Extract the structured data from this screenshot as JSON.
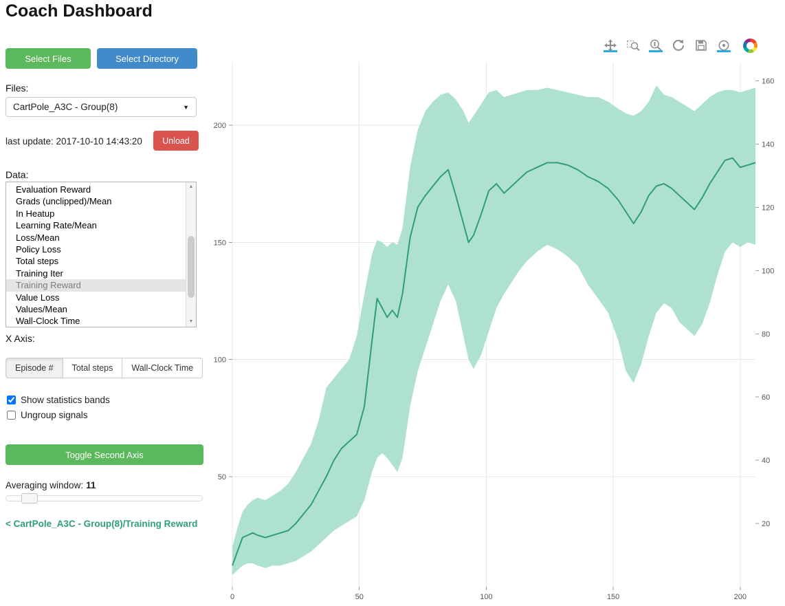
{
  "header": {
    "title": "Coach Dashboard"
  },
  "colors": {
    "green_button": "#5cb85c",
    "blue_button": "#428bca",
    "red_button": "#d9534f",
    "link_green": "#2f9e77",
    "active_tool_underline": "#26aae1"
  },
  "sidebar": {
    "select_files": "Select Files",
    "select_directory": "Select Directory",
    "files_label": "Files:",
    "files_selected": "CartPole_A3C - Group(8)",
    "last_update": "last update: 2017-10-10 14:43:20",
    "unload": "Unload",
    "data_label": "Data:",
    "data_items": [
      "Evaluation Reward",
      "Grads (unclipped)/Mean",
      "In Heatup",
      "Learning Rate/Mean",
      "Loss/Mean",
      "Policy Loss",
      "Total steps",
      "Training Iter",
      "Training Reward",
      "Value Loss",
      "Values/Mean",
      "Wall-Clock Time"
    ],
    "data_selected": "Training Reward",
    "xaxis_label": "X Axis:",
    "xaxis_options": [
      "Episode #",
      "Total steps",
      "Wall-Clock Time"
    ],
    "xaxis_active": "Episode #",
    "show_bands_label": "Show statistics bands",
    "show_bands_checked": true,
    "ungroup_label": "Ungroup signals",
    "ungroup_checked": false,
    "toggle_second_axis": "Toggle Second Axis",
    "averaging_label": "Averaging window:",
    "averaging_value": "11",
    "breadcrumb": "< CartPole_A3C - Group(8)/Training Reward"
  },
  "toolbar": {
    "tools": [
      {
        "name": "pan",
        "active": true
      },
      {
        "name": "box-zoom",
        "active": false
      },
      {
        "name": "wheel-zoom",
        "active": true
      },
      {
        "name": "reset",
        "active": false
      },
      {
        "name": "save",
        "active": false
      },
      {
        "name": "hover",
        "active": true
      }
    ],
    "logo": "bokeh"
  },
  "chart_data": {
    "type": "line",
    "title": "",
    "xlabel": "",
    "ylabel": "",
    "grid": true,
    "legend": null,
    "xlim": [
      0,
      206
    ],
    "ylim": [
      3,
      227
    ],
    "right_ylim": [
      0,
      166
    ],
    "x_ticks": [
      0,
      50,
      100,
      150,
      200
    ],
    "y_ticks_left": [
      50,
      100,
      150,
      200
    ],
    "y_ticks_right": [
      20,
      40,
      60,
      80,
      100,
      120,
      140,
      160
    ],
    "line_color": "#2f9e77",
    "band_color": "#abdfd0",
    "x": [
      0,
      2,
      4,
      6,
      8,
      10,
      13,
      16,
      19,
      22,
      25,
      28,
      31,
      34,
      37,
      40,
      43,
      46,
      49,
      52,
      55,
      57,
      59,
      61,
      63,
      65,
      67,
      70,
      73,
      76,
      79,
      82,
      85,
      88,
      91,
      93,
      95,
      98,
      101,
      104,
      107,
      110,
      113,
      116,
      120,
      124,
      128,
      132,
      136,
      140,
      144,
      148,
      152,
      155,
      158,
      161,
      164,
      167,
      170,
      173,
      176,
      179,
      182,
      185,
      188,
      191,
      194,
      197,
      200,
      203,
      206
    ],
    "series": [
      {
        "name": "Training Reward (mean)",
        "values": [
          12,
          18,
          24,
          25,
          26,
          25,
          24,
          25,
          26,
          27,
          30,
          34,
          38,
          44,
          50,
          57,
          62,
          65,
          68,
          80,
          108,
          126,
          122,
          118,
          121,
          118,
          128,
          152,
          165,
          170,
          174,
          178,
          181,
          170,
          158,
          150,
          153,
          162,
          172,
          175,
          171,
          174,
          177,
          180,
          182,
          184,
          184,
          183,
          181,
          178,
          176,
          173,
          168,
          163,
          158,
          163,
          170,
          174,
          175,
          173,
          170,
          167,
          164,
          169,
          175,
          180,
          185,
          186,
          182,
          183,
          184
        ]
      }
    ],
    "band": {
      "name": "statistics band",
      "lower": [
        8,
        10,
        12,
        13,
        13,
        12,
        11,
        12,
        12,
        13,
        14,
        16,
        18,
        21,
        24,
        27,
        29,
        31,
        33,
        40,
        52,
        58,
        60,
        58,
        55,
        52,
        58,
        80,
        95,
        105,
        115,
        125,
        132,
        125,
        110,
        100,
        96,
        102,
        112,
        122,
        128,
        133,
        138,
        142,
        146,
        149,
        147,
        144,
        140,
        132,
        126,
        120,
        108,
        95,
        90,
        98,
        110,
        120,
        124,
        122,
        116,
        113,
        110,
        115,
        124,
        136,
        146,
        150,
        148,
        150,
        149
      ],
      "upper": [
        20,
        28,
        35,
        38,
        40,
        41,
        40,
        42,
        44,
        47,
        52,
        58,
        64,
        74,
        88,
        92,
        96,
        100,
        110,
        128,
        145,
        151,
        150,
        148,
        150,
        149,
        156,
        182,
        198,
        206,
        210,
        213,
        214,
        211,
        206,
        201,
        204,
        209,
        214,
        215,
        212,
        213,
        214,
        215,
        215,
        216,
        215,
        214,
        213,
        212,
        212,
        210,
        207,
        205,
        204,
        206,
        210,
        217,
        213,
        212,
        210,
        208,
        206,
        209,
        212,
        214,
        215,
        215,
        214,
        215,
        216
      ]
    }
  }
}
